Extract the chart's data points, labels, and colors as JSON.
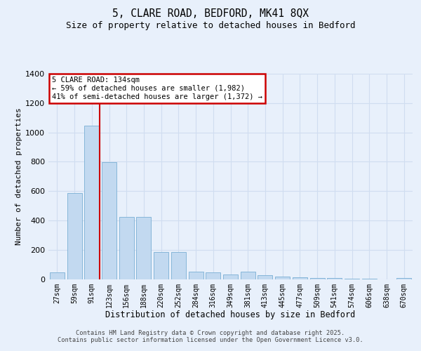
{
  "title": "5, CLARE ROAD, BEDFORD, MK41 8QX",
  "subtitle": "Size of property relative to detached houses in Bedford",
  "xlabel": "Distribution of detached houses by size in Bedford",
  "ylabel": "Number of detached properties",
  "categories": [
    "27sqm",
    "59sqm",
    "91sqm",
    "123sqm",
    "156sqm",
    "188sqm",
    "220sqm",
    "252sqm",
    "284sqm",
    "316sqm",
    "349sqm",
    "381sqm",
    "413sqm",
    "445sqm",
    "477sqm",
    "509sqm",
    "541sqm",
    "574sqm",
    "606sqm",
    "638sqm",
    "670sqm"
  ],
  "values": [
    45,
    585,
    1045,
    795,
    425,
    425,
    185,
    185,
    50,
    45,
    30,
    50,
    25,
    15,
    10,
    8,
    5,
    3,
    2,
    0,
    8
  ],
  "bar_color": "#c2d9f0",
  "bar_edge_color": "#7aafd4",
  "background_color": "#e8f0fb",
  "grid_color": "#d0ddf0",
  "annotation_text": "5 CLARE ROAD: 134sqm\n← 59% of detached houses are smaller (1,982)\n41% of semi-detached houses are larger (1,372) →",
  "annotation_box_color": "#ffffff",
  "annotation_box_edge": "#cc0000",
  "vline_position": 2.45,
  "vline_color": "#cc0000",
  "ylim": [
    0,
    1400
  ],
  "yticks": [
    0,
    200,
    400,
    600,
    800,
    1000,
    1200,
    1400
  ],
  "footnote_line1": "Contains HM Land Registry data © Crown copyright and database right 2025.",
  "footnote_line2": "Contains public sector information licensed under the Open Government Licence v3.0."
}
